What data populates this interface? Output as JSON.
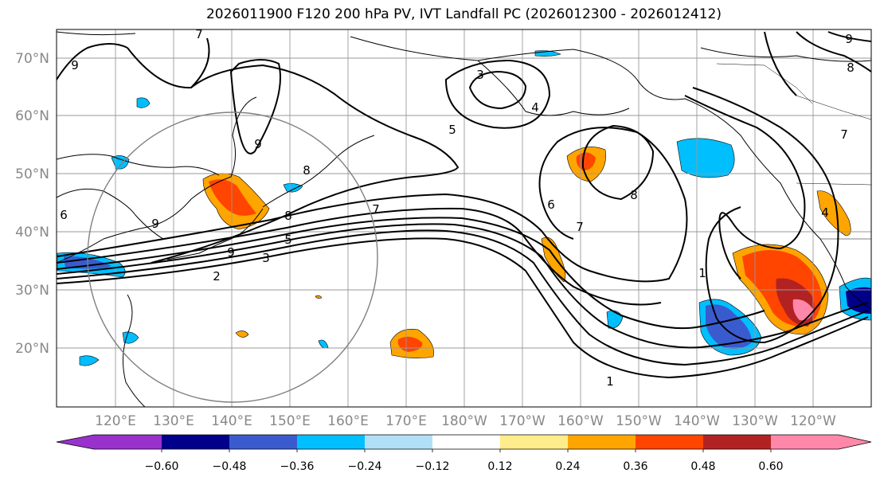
{
  "title": "2026011900 F120 200 hPa PV, IVT Landfall PC (2026012300 - 2026012412)",
  "map": {
    "lat_labels": [
      "70°N",
      "60°N",
      "50°N",
      "40°N",
      "30°N",
      "20°N"
    ],
    "lon_labels": [
      "120°E",
      "130°E",
      "140°E",
      "150°E",
      "160°E",
      "170°E",
      "180°W",
      "170°W",
      "160°W",
      "150°W",
      "140°W",
      "130°W",
      "120°W"
    ],
    "contour_labels": [
      "9",
      "7",
      "3",
      "5",
      "4",
      "8",
      "9",
      "8",
      "9",
      "8",
      "7",
      "5",
      "3",
      "2",
      "6",
      "7",
      "8",
      "9",
      "6",
      "1",
      "1",
      "7",
      "4",
      "9"
    ]
  },
  "colorbar": {
    "ticks": [
      "−0.60",
      "−0.48",
      "−0.36",
      "−0.24",
      "−0.12",
      "0.12",
      "0.24",
      "0.36",
      "0.48",
      "0.60"
    ],
    "colors": [
      "#9932cc",
      "#00008b",
      "#3a5bcd",
      "#00bfff",
      "#b0e0f8",
      "#ffffff",
      "#ffec8b",
      "#ffa500",
      "#ff4500",
      "#b22222",
      "#ff88aa"
    ]
  }
}
